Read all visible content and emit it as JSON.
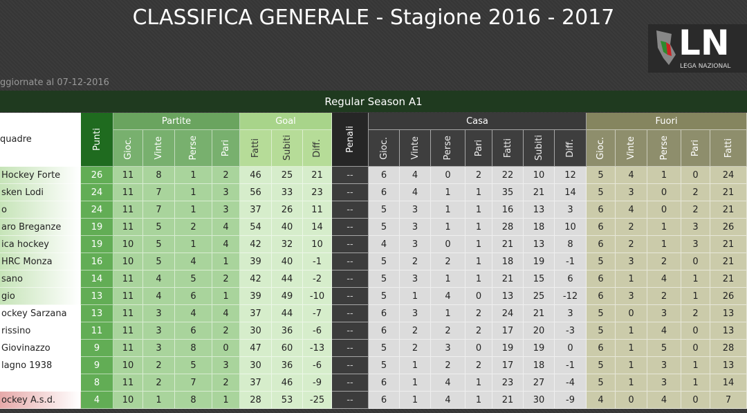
{
  "header": {
    "title": "CLASSIFICA GENERALE - Stagione 2016 - 2017",
    "updated": "ggiornate al 07-12-2016",
    "logo_text": "LN",
    "logo_subtext": "LEGA NAZIONAL"
  },
  "table": {
    "section": "Regular Season A1",
    "groups": [
      "Partite",
      "Goal",
      "Casa",
      "Fuori"
    ],
    "columns": [
      "quadre",
      "Punti",
      "Gioc.",
      "Vinte",
      "Perse",
      "Pari",
      "Fatti",
      "Subiti",
      "Diff.",
      "Penali",
      "Gioc.",
      "Vinte",
      "Perse",
      "Pari",
      "Fatti",
      "Subiti",
      "Diff.",
      "Gioc.",
      "Vinte",
      "Perse",
      "Pari",
      "Fatti"
    ],
    "rows": [
      [
        "Hockey Forte",
        26,
        11,
        8,
        1,
        2,
        46,
        25,
        21,
        "--",
        6,
        4,
        0,
        2,
        22,
        10,
        12,
        5,
        4,
        1,
        0,
        24
      ],
      [
        "sken Lodi",
        24,
        11,
        7,
        1,
        3,
        56,
        33,
        23,
        "--",
        6,
        4,
        1,
        1,
        35,
        21,
        14,
        5,
        3,
        0,
        2,
        21
      ],
      [
        "o",
        24,
        11,
        7,
        1,
        3,
        37,
        26,
        11,
        "--",
        5,
        3,
        1,
        1,
        16,
        13,
        3,
        6,
        4,
        0,
        2,
        21
      ],
      [
        "aro Breganze",
        19,
        11,
        5,
        2,
        4,
        54,
        40,
        14,
        "--",
        5,
        3,
        1,
        1,
        28,
        18,
        10,
        6,
        2,
        1,
        3,
        26
      ],
      [
        "ica hockey",
        19,
        10,
        5,
        1,
        4,
        42,
        32,
        10,
        "--",
        4,
        3,
        0,
        1,
        21,
        13,
        8,
        6,
        2,
        1,
        3,
        21
      ],
      [
        "HRC Monza",
        16,
        10,
        5,
        4,
        1,
        39,
        40,
        -1,
        "--",
        5,
        2,
        2,
        1,
        18,
        19,
        -1,
        5,
        3,
        2,
        0,
        21
      ],
      [
        "sano",
        14,
        11,
        4,
        5,
        2,
        42,
        44,
        -2,
        "--",
        5,
        3,
        1,
        1,
        21,
        15,
        6,
        6,
        1,
        4,
        1,
        21
      ],
      [
        "gio",
        13,
        11,
        4,
        6,
        1,
        39,
        49,
        -10,
        "--",
        5,
        1,
        4,
        0,
        13,
        25,
        -12,
        6,
        3,
        2,
        1,
        26
      ],
      [
        "ockey Sarzana",
        13,
        11,
        3,
        4,
        4,
        37,
        44,
        -7,
        "--",
        6,
        3,
        1,
        2,
        24,
        21,
        3,
        5,
        0,
        3,
        2,
        13
      ],
      [
        "rissino",
        11,
        11,
        3,
        6,
        2,
        30,
        36,
        -6,
        "--",
        6,
        2,
        2,
        2,
        17,
        20,
        -3,
        5,
        1,
        4,
        0,
        13
      ],
      [
        "Giovinazzo",
        9,
        11,
        3,
        8,
        0,
        47,
        60,
        -13,
        "--",
        5,
        2,
        3,
        0,
        19,
        19,
        0,
        6,
        1,
        5,
        0,
        28
      ],
      [
        "lagno 1938",
        9,
        10,
        2,
        5,
        3,
        30,
        36,
        -6,
        "--",
        5,
        1,
        2,
        2,
        17,
        18,
        -1,
        5,
        1,
        3,
        1,
        13
      ],
      [
        null,
        8,
        11,
        2,
        7,
        2,
        37,
        46,
        -9,
        "--",
        6,
        1,
        4,
        1,
        23,
        27,
        -4,
        5,
        1,
        3,
        1,
        14
      ],
      [
        "ockey A.s.d.",
        4,
        10,
        1,
        8,
        1,
        28,
        53,
        -25,
        "--",
        6,
        1,
        4,
        1,
        21,
        30,
        -9,
        4,
        0,
        4,
        0,
        7
      ]
    ]
  }
}
